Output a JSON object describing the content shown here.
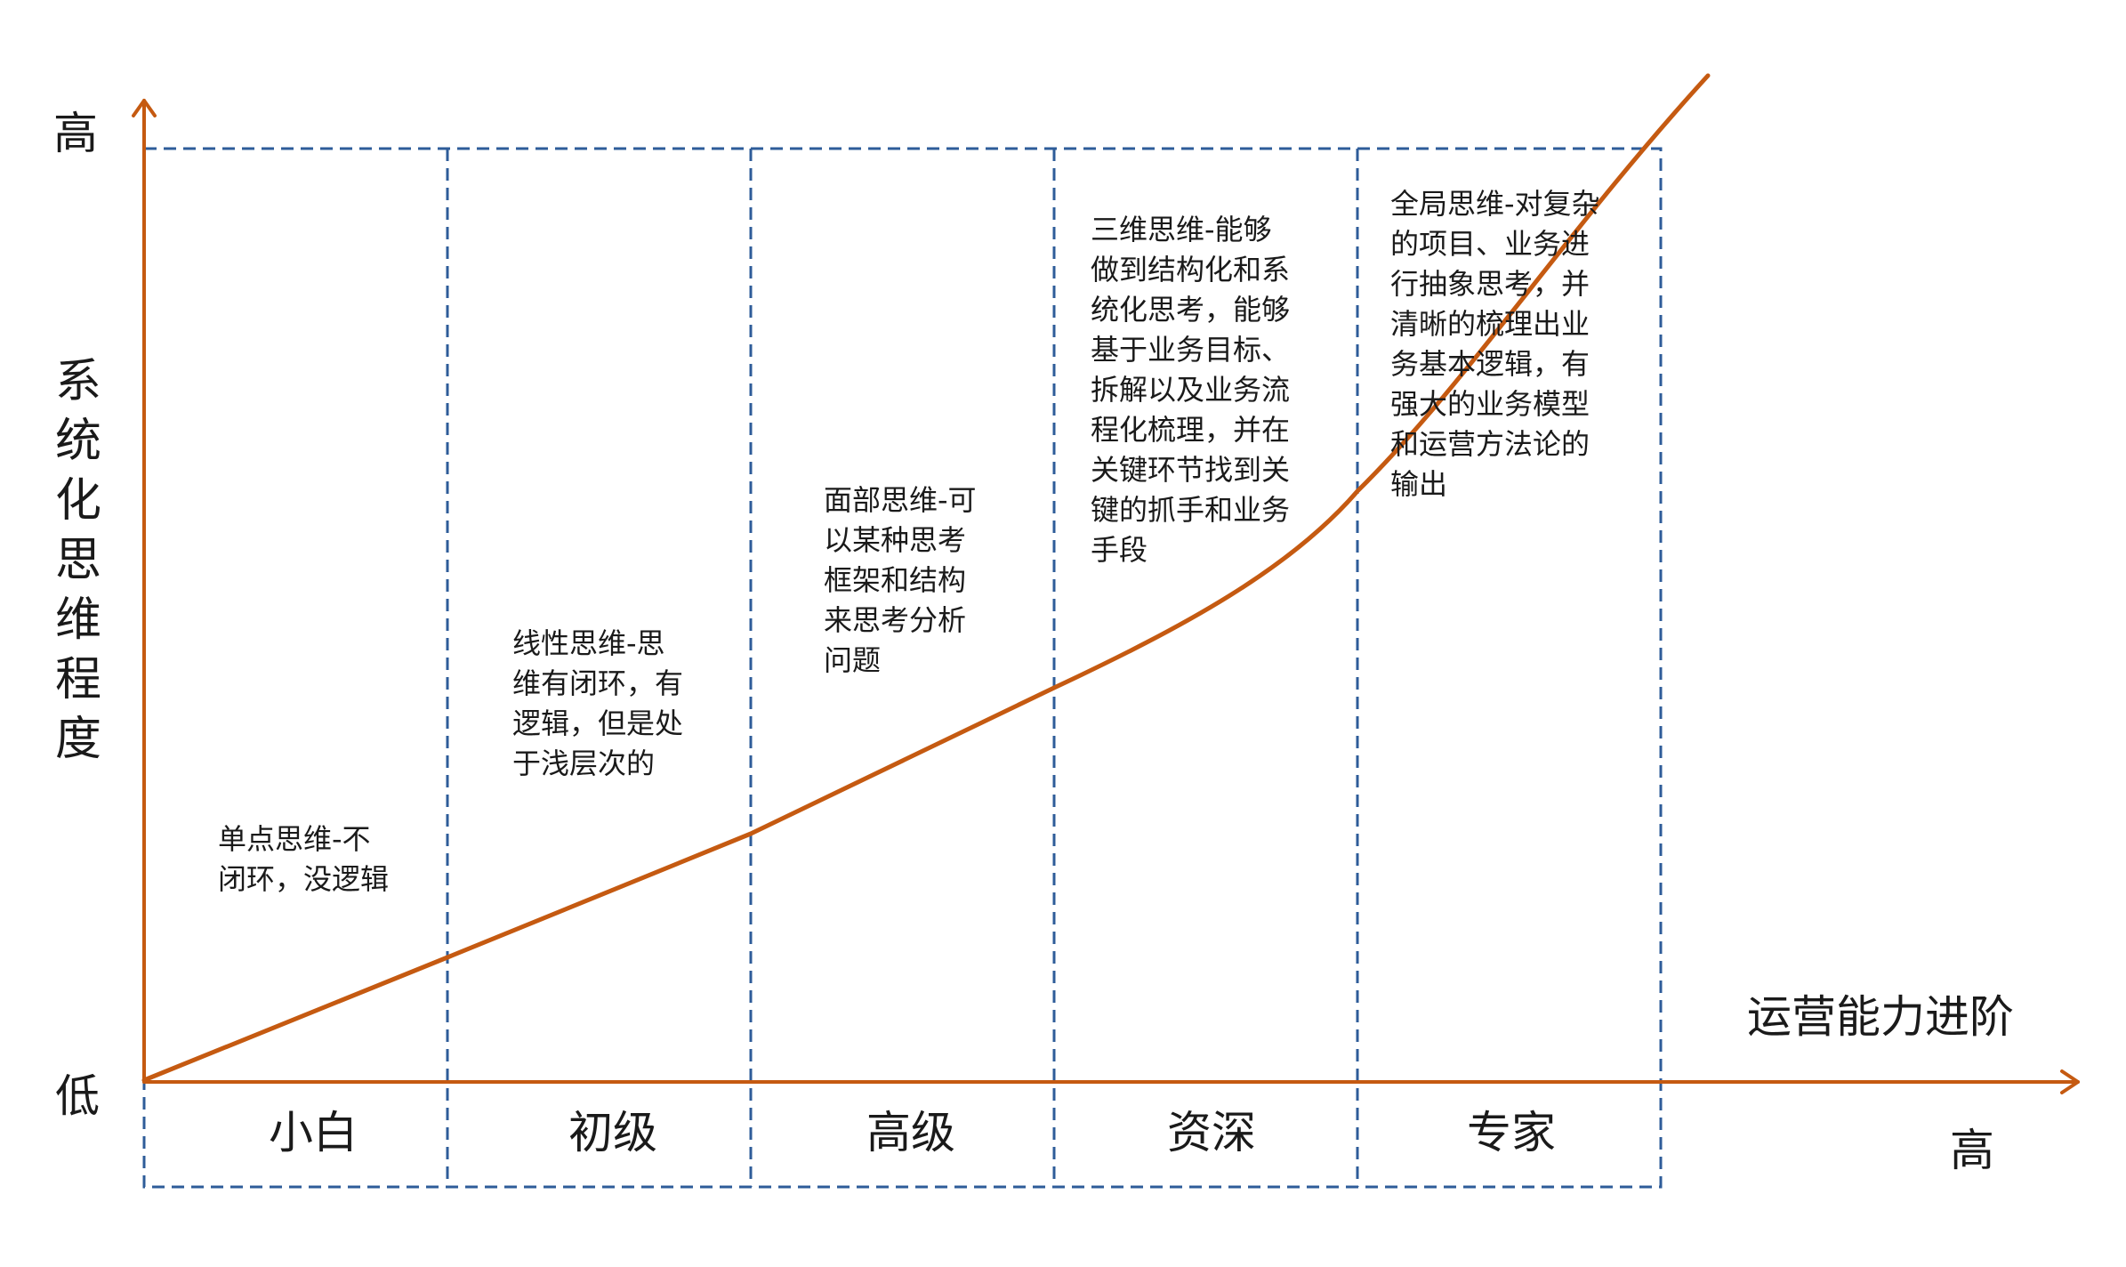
{
  "axes": {
    "y_high": "高",
    "y_low": "低",
    "y_title": "系统化思维程度",
    "x_title": "运营能力进阶",
    "x_high": "高"
  },
  "stages": [
    {
      "label": "小白",
      "description": "单点思维-不\n闭环，没逻辑"
    },
    {
      "label": "初级",
      "description": "线性思维-思\n维有闭环，有\n逻辑，但是处\n于浅层次的"
    },
    {
      "label": "高级",
      "description": "面部思维-可\n以某种思考\n框架和结构\n来思考分析\n问题"
    },
    {
      "label": "资深",
      "description": "三维思维-能够\n做到结构化和系\n统化思考，能够\n基于业务目标、\n拆解以及业务流\n程化梳理，并在\n关键环节找到关\n键的抓手和业务\n手段"
    },
    {
      "label": "专家",
      "description": "全局思维-对复杂\n的项目、业务进\n行抽象思考，并\n清晰的梳理出业\n务基本逻辑，有\n强大的业务模型\n和运营方法论的\n输出"
    }
  ],
  "colors": {
    "axis": "#C55A11",
    "curve": "#C55A11",
    "grid": "#2E5C99",
    "text": "#1a1a1a"
  }
}
